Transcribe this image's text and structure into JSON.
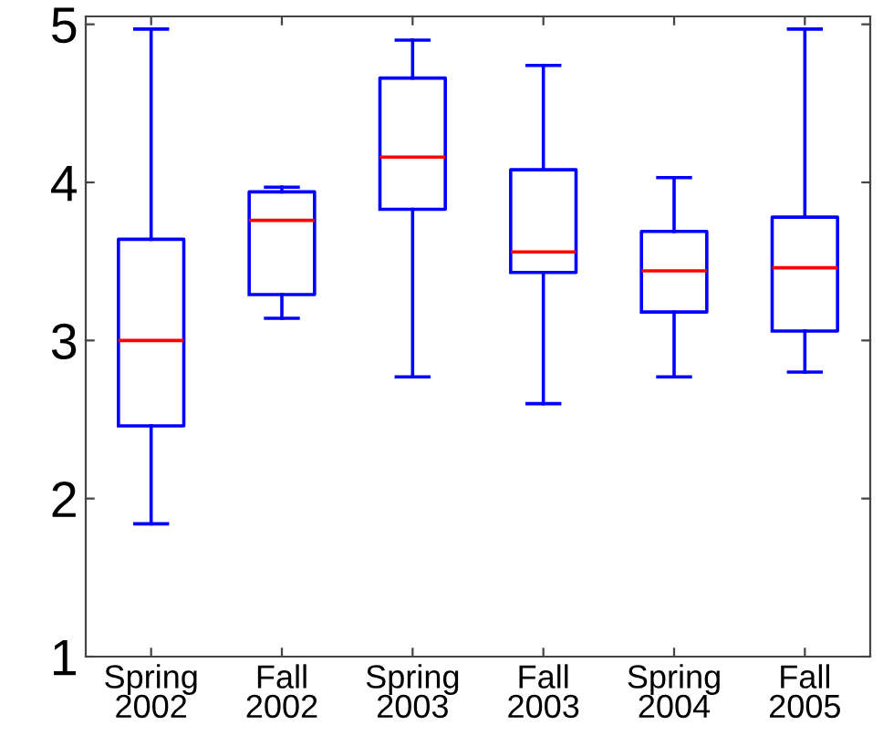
{
  "chart_data": {
    "type": "box",
    "categories": [
      "Spring\n2002",
      "Fall\n2002",
      "Spring\n2003",
      "Fall\n2003",
      "Spring\n2004",
      "Fall\n2005"
    ],
    "series": [
      {
        "color": "#0000ff",
        "boxes": [
          {
            "low": 1.84,
            "q1": 2.46,
            "median": 3.0,
            "q3": 3.64,
            "high": 4.97
          },
          {
            "low": 3.14,
            "q1": 3.29,
            "median": 3.76,
            "q3": 3.94,
            "high": 3.97
          },
          {
            "low": 2.77,
            "q1": 3.83,
            "median": 4.16,
            "q3": 4.66,
            "high": 4.9
          },
          {
            "low": 2.6,
            "q1": 3.43,
            "median": 3.56,
            "q3": 4.08,
            "high": 4.74
          },
          {
            "low": 2.77,
            "q1": 3.18,
            "median": 3.44,
            "q3": 3.69,
            "high": 4.03
          },
          {
            "low": 2.8,
            "q1": 3.06,
            "median": 3.46,
            "q3": 3.78,
            "high": 4.97
          }
        ]
      }
    ],
    "ylim": [
      1,
      5.05
    ],
    "yticks": [
      1,
      2,
      3,
      4,
      5
    ],
    "grid": false
  }
}
